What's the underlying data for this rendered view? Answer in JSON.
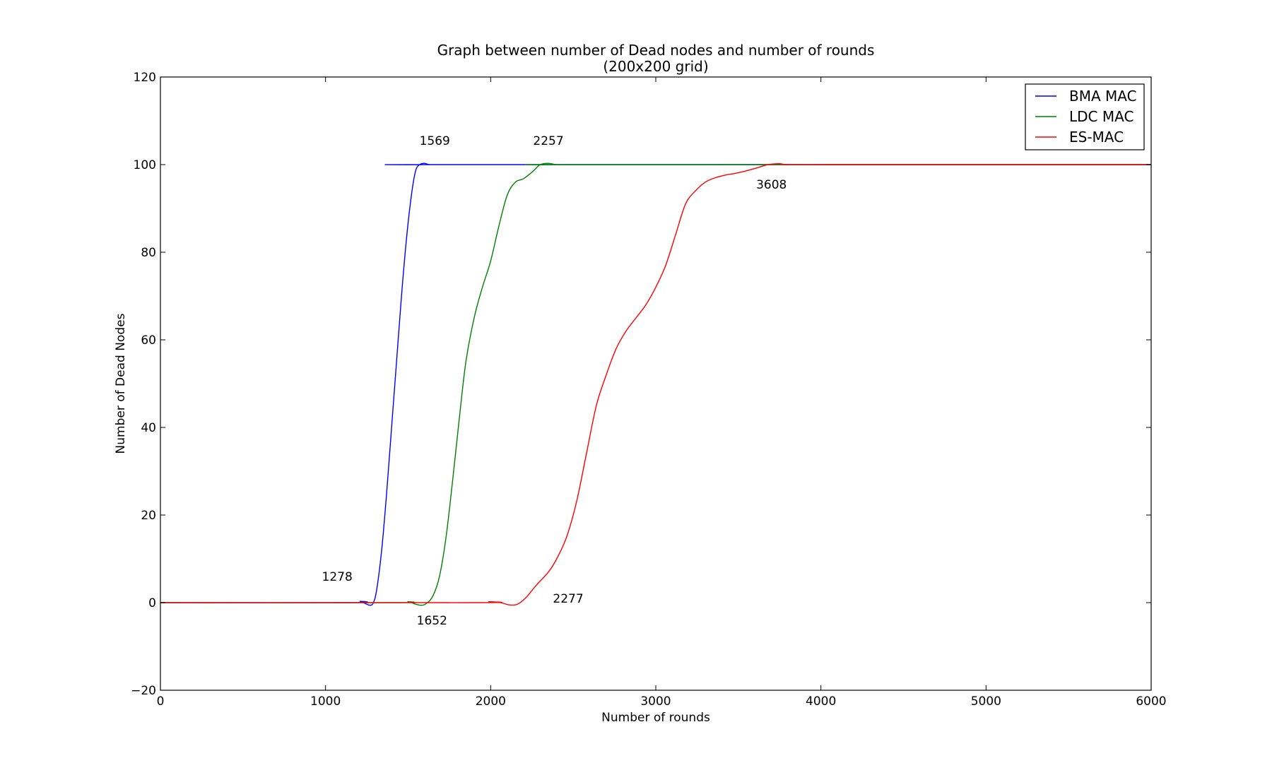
{
  "chart_data": {
    "type": "line",
    "title": "Graph between number of Dead nodes and number of rounds",
    "subtitle": "(200x200 grid)",
    "xlabel": "Number of rounds",
    "ylabel": "Number of Dead Nodes",
    "xlim": [
      0,
      6000
    ],
    "ylim": [
      -20,
      120
    ],
    "xticks": [
      0,
      1000,
      2000,
      3000,
      4000,
      5000,
      6000
    ],
    "yticks": [
      -20,
      0,
      20,
      40,
      60,
      80,
      100,
      120
    ],
    "xtick_labels": [
      "0",
      "1000",
      "2000",
      "3000",
      "4000",
      "5000",
      "6000"
    ],
    "ytick_labels": [
      "−20",
      "0",
      "20",
      "40",
      "60",
      "80",
      "100",
      "120"
    ],
    "grid": false,
    "legend_position": "top-right",
    "series": [
      {
        "name": "BMA MAC",
        "color": "#0000ff",
        "points": [
          [
            0,
            0
          ],
          [
            1150,
            0
          ],
          [
            1210,
            0.3
          ],
          [
            1240,
            -0.2
          ],
          [
            1270,
            -0.6
          ],
          [
            1290,
            0
          ],
          [
            1310,
            3
          ],
          [
            1340,
            12
          ],
          [
            1370,
            25
          ],
          [
            1400,
            40
          ],
          [
            1430,
            55
          ],
          [
            1460,
            70
          ],
          [
            1490,
            83
          ],
          [
            1520,
            93
          ],
          [
            1545,
            98.5
          ],
          [
            1570,
            100
          ],
          [
            1600,
            100.3
          ],
          [
            1630,
            100
          ],
          [
            1700,
            100
          ],
          [
            6000,
            100
          ]
        ]
      },
      {
        "name": "LDC MAC",
        "color": "#008000",
        "points": [
          [
            0,
            0
          ],
          [
            1400,
            0
          ],
          [
            1500,
            0.2
          ],
          [
            1540,
            -0.3
          ],
          [
            1580,
            -0.6
          ],
          [
            1610,
            -0.2
          ],
          [
            1650,
            1.5
          ],
          [
            1690,
            6
          ],
          [
            1730,
            15
          ],
          [
            1770,
            28
          ],
          [
            1810,
            42
          ],
          [
            1850,
            55
          ],
          [
            1900,
            65
          ],
          [
            1950,
            72
          ],
          [
            2000,
            78
          ],
          [
            2050,
            86
          ],
          [
            2100,
            93
          ],
          [
            2150,
            96
          ],
          [
            2200,
            96.8
          ],
          [
            2257,
            98.5
          ],
          [
            2300,
            100
          ],
          [
            2350,
            100.3
          ],
          [
            2400,
            100
          ],
          [
            2500,
            100
          ],
          [
            6000,
            100
          ]
        ]
      },
      {
        "name": "ES-MAC",
        "color": "#ff0000",
        "points": [
          [
            0,
            0
          ],
          [
            1900,
            0
          ],
          [
            1990,
            0.2
          ],
          [
            2060,
            0
          ],
          [
            2110,
            -0.5
          ],
          [
            2160,
            -0.4
          ],
          [
            2210,
            1
          ],
          [
            2277,
            4
          ],
          [
            2350,
            7
          ],
          [
            2400,
            10
          ],
          [
            2460,
            15
          ],
          [
            2520,
            23
          ],
          [
            2580,
            34
          ],
          [
            2640,
            45
          ],
          [
            2700,
            52
          ],
          [
            2760,
            58
          ],
          [
            2820,
            62
          ],
          [
            2880,
            65
          ],
          [
            2940,
            68
          ],
          [
            3000,
            72
          ],
          [
            3060,
            77
          ],
          [
            3120,
            84
          ],
          [
            3180,
            91
          ],
          [
            3240,
            94
          ],
          [
            3300,
            96
          ],
          [
            3360,
            97
          ],
          [
            3420,
            97.6
          ],
          [
            3480,
            98
          ],
          [
            3540,
            98.5
          ],
          [
            3608,
            99.2
          ],
          [
            3680,
            100
          ],
          [
            3750,
            100.2
          ],
          [
            3800,
            100
          ],
          [
            4000,
            100
          ],
          [
            6000,
            100
          ]
        ]
      }
    ],
    "annotations": [
      {
        "text": "1569",
        "x": 1569,
        "y": 104.5
      },
      {
        "text": "2257",
        "x": 2257,
        "y": 104.5
      },
      {
        "text": "3608",
        "x": 3608,
        "y": 94.5
      },
      {
        "text": "1278",
        "x": 978,
        "y": 5
      },
      {
        "text": "2277",
        "x": 2377,
        "y": 0
      },
      {
        "text": "1652",
        "x": 1552,
        "y": -5
      }
    ]
  }
}
